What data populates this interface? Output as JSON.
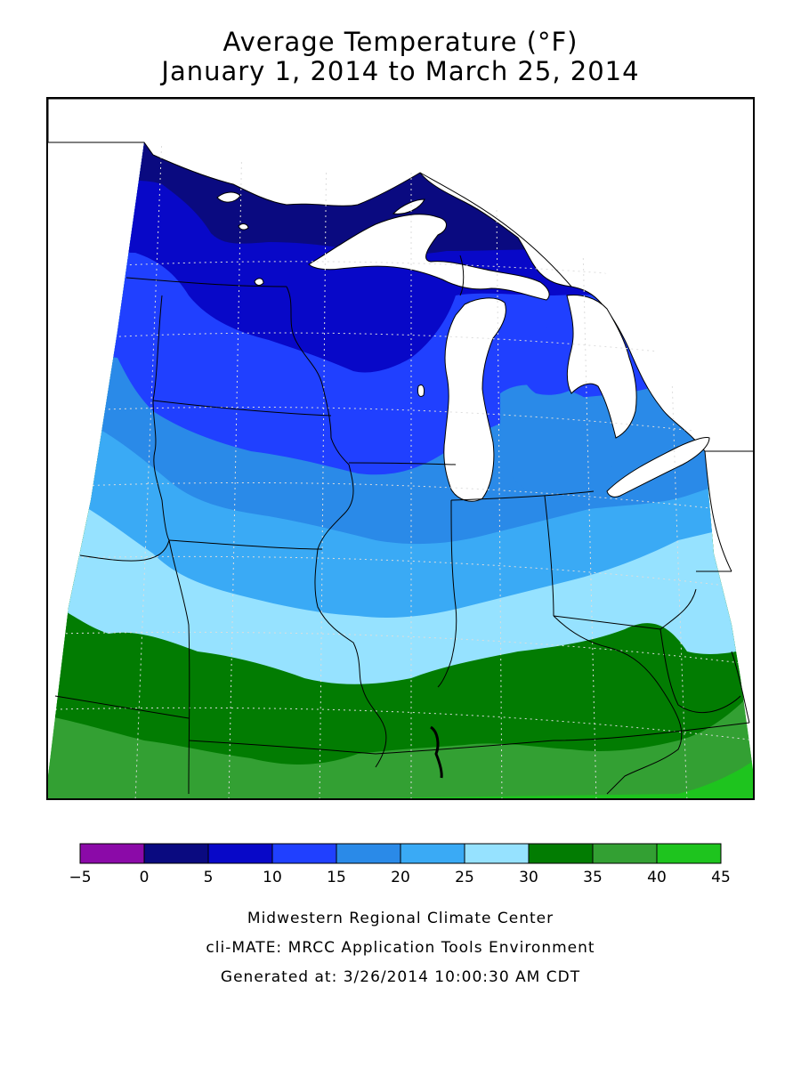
{
  "title": {
    "line1": "Average Temperature (°F)",
    "line2": "January 1, 2014 to March 25, 2014"
  },
  "legend": {
    "bins": [
      {
        "from": -5,
        "to": 0,
        "color": "#8b0aa8"
      },
      {
        "from": 0,
        "to": 5,
        "color": "#0a0a80"
      },
      {
        "from": 5,
        "to": 10,
        "color": "#0808c8"
      },
      {
        "from": 10,
        "to": 15,
        "color": "#2040ff"
      },
      {
        "from": 15,
        "to": 20,
        "color": "#2a8ae8"
      },
      {
        "from": 20,
        "to": 25,
        "color": "#3aaaf5"
      },
      {
        "from": 25,
        "to": 30,
        "color": "#96e2ff"
      },
      {
        "from": 30,
        "to": 35,
        "color": "#027c02"
      },
      {
        "from": 35,
        "to": 40,
        "color": "#33a033"
      },
      {
        "from": 40,
        "to": 45,
        "color": "#1ec41e"
      }
    ],
    "tick_labels": [
      "−5",
      "0",
      "5",
      "10",
      "15",
      "20",
      "25",
      "30",
      "35",
      "40",
      "45"
    ]
  },
  "credits": {
    "line1": "Midwestern Regional Climate Center",
    "line2": "cli-MATE: MRCC Application Tools Environment",
    "line3": "Generated at: 3/26/2014 10:00:30 AM CDT"
  }
}
